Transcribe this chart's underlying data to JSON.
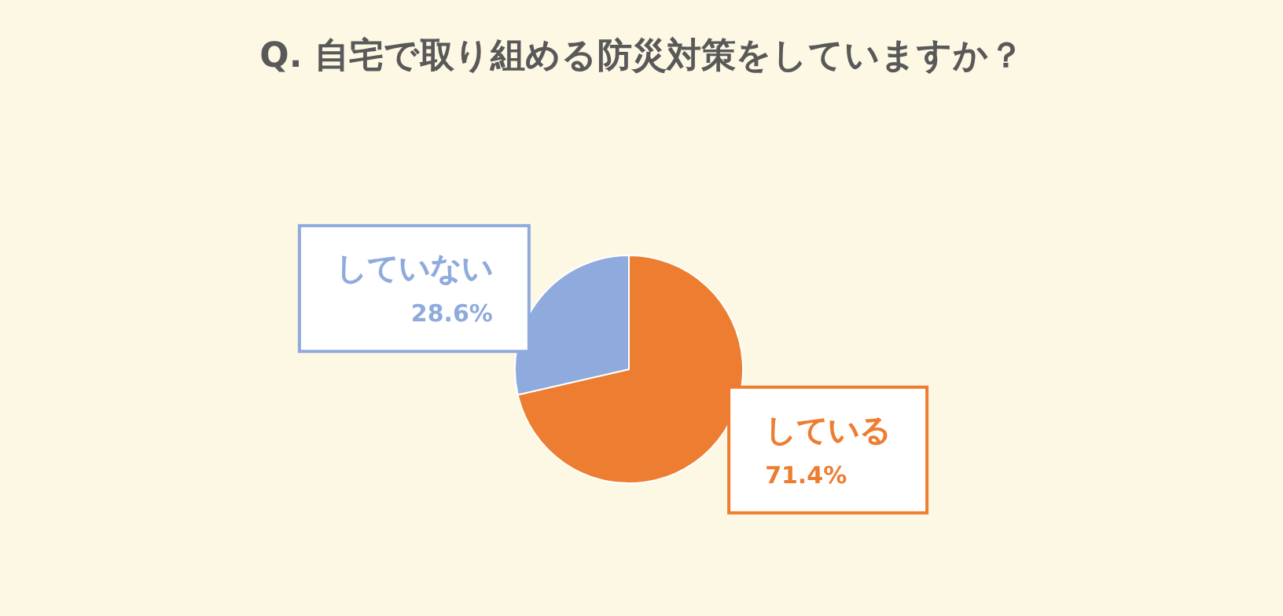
{
  "chart_data": {
    "type": "pie",
    "title": "Q. 自宅で取り組める防災対策をしていますか？",
    "categories": [
      "している",
      "していない"
    ],
    "values": [
      71.4,
      28.6
    ],
    "colors": [
      "#ed7d31",
      "#8faadc"
    ],
    "value_labels": [
      "71.4%",
      "28.6%"
    ],
    "legend": false
  }
}
